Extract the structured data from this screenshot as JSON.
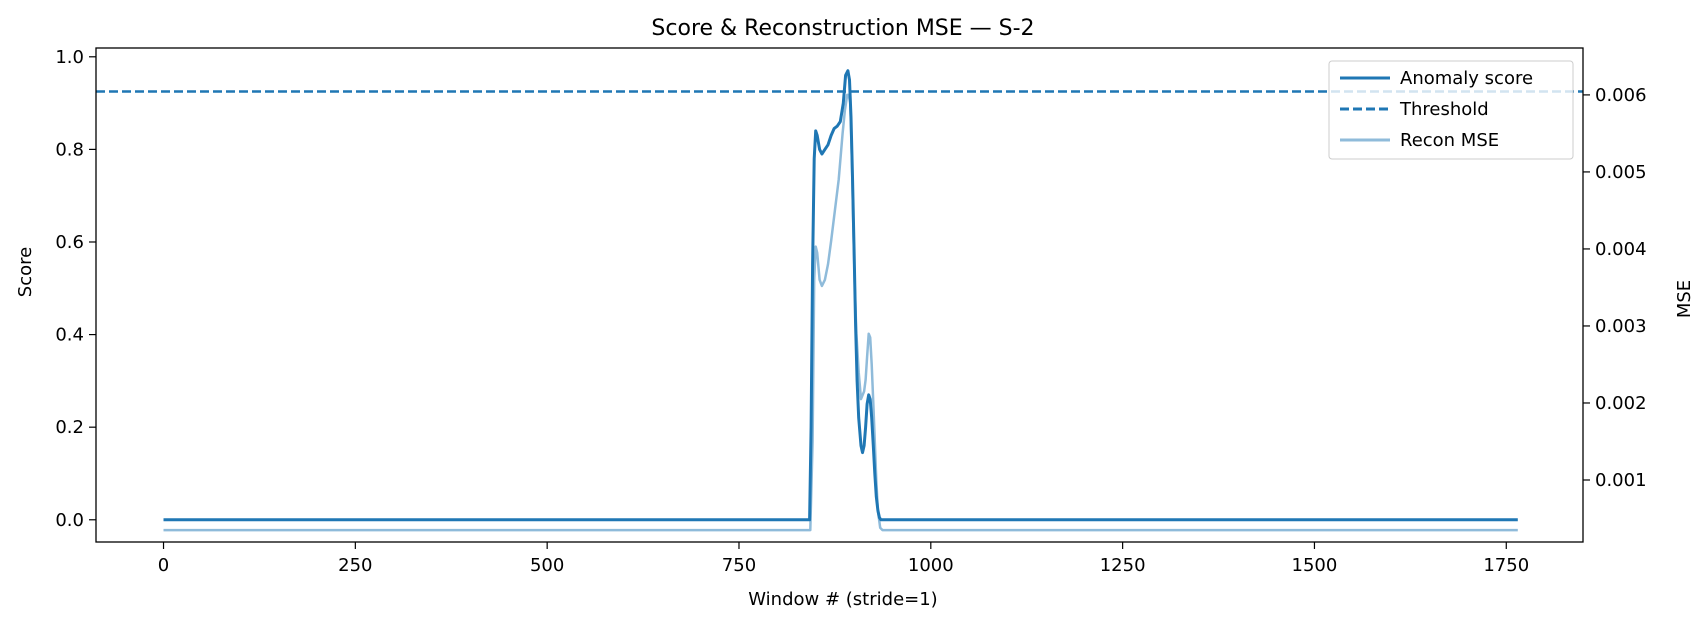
{
  "chart_data": {
    "type": "line",
    "title": "Score & Reconstruction MSE — S-2",
    "xlabel": "Window # (stride=1)",
    "ylabel": "Score",
    "y2label": "MSE",
    "xlim": [
      -88,
      1850
    ],
    "ylim": [
      -0.048,
      1.019
    ],
    "y2lim": [
      0.000195,
      0.006609
    ],
    "xticks": [
      0,
      250,
      500,
      750,
      1000,
      1250,
      1500,
      1750
    ],
    "yticks": [
      0.0,
      0.2,
      0.4,
      0.6,
      0.8,
      1.0
    ],
    "ytick_labels": [
      "0.0",
      "0.2",
      "0.4",
      "0.6",
      "0.8",
      "1.0"
    ],
    "y2ticks": [
      0.001,
      0.002,
      0.003,
      0.004,
      0.005,
      0.006
    ],
    "y2tick_labels": [
      "0.001",
      "0.002",
      "0.003",
      "0.004",
      "0.005",
      "0.006"
    ],
    "grid": false,
    "legend_position": "top-right",
    "colors": {
      "score": "#1f77b4",
      "threshold": "#1f77b4",
      "mse": "#8fbbda"
    },
    "threshold": 0.925,
    "series": [
      {
        "name": "Recon MSE",
        "axis": "right",
        "style": "solid",
        "x": [
          0,
          100,
          200,
          300,
          400,
          500,
          600,
          700,
          800,
          843,
          846,
          848,
          850,
          852,
          855,
          858,
          862,
          866,
          870,
          875,
          880,
          885,
          888,
          891,
          893,
          895,
          897,
          899,
          901,
          903,
          906,
          909,
          911,
          913,
          915,
          917,
          919,
          921,
          923,
          925,
          927,
          929,
          931,
          934,
          937,
          940,
          1000,
          1100,
          1200,
          1300,
          1400,
          1500,
          1600,
          1700,
          1765
        ],
        "y": [
          0.00035,
          0.00035,
          0.00035,
          0.00035,
          0.00035,
          0.00035,
          0.00035,
          0.00035,
          0.00035,
          0.00035,
          0.0015,
          0.0036,
          0.00403,
          0.00395,
          0.0036,
          0.00352,
          0.0036,
          0.0038,
          0.0041,
          0.0045,
          0.0049,
          0.0055,
          0.0058,
          0.006,
          0.006,
          0.0059,
          0.0052,
          0.0043,
          0.0035,
          0.0029,
          0.0024,
          0.00205,
          0.0021,
          0.00215,
          0.0023,
          0.0026,
          0.0029,
          0.00285,
          0.0025,
          0.002,
          0.0015,
          0.001,
          0.0006,
          0.00038,
          0.00035,
          0.00035,
          0.00035,
          0.00035,
          0.00035,
          0.00035,
          0.00035,
          0.00035,
          0.00035,
          0.00035,
          0.00035
        ]
      },
      {
        "name": "Anomaly score",
        "axis": "left",
        "style": "solid",
        "x": [
          0,
          100,
          200,
          300,
          400,
          500,
          600,
          700,
          800,
          842,
          844,
          846,
          848,
          850,
          852,
          855,
          858,
          862,
          866,
          870,
          874,
          878,
          882,
          886,
          889,
          892,
          894,
          896,
          898,
          900,
          902,
          904,
          906,
          909,
          911,
          913,
          915,
          917,
          919,
          921,
          923,
          925,
          927,
          929,
          931,
          933,
          935,
          937,
          940,
          1000,
          1100,
          1200,
          1300,
          1400,
          1500,
          1600,
          1700,
          1765
        ],
        "y": [
          0.0,
          0.0,
          0.0,
          0.0,
          0.0,
          0.0,
          0.0,
          0.0,
          0.0,
          0.0,
          0.2,
          0.55,
          0.78,
          0.84,
          0.83,
          0.8,
          0.79,
          0.8,
          0.81,
          0.83,
          0.845,
          0.85,
          0.86,
          0.9,
          0.96,
          0.97,
          0.95,
          0.87,
          0.74,
          0.58,
          0.42,
          0.3,
          0.22,
          0.16,
          0.145,
          0.16,
          0.2,
          0.25,
          0.27,
          0.26,
          0.22,
          0.16,
          0.1,
          0.05,
          0.02,
          0.005,
          0.0,
          0.0,
          0.0,
          0.0,
          0.0,
          0.0,
          0.0,
          0.0,
          0.0,
          0.0,
          0.0,
          0.0
        ]
      }
    ],
    "legend": [
      {
        "label": "Anomaly score",
        "style": "solid",
        "color": "#1f77b4"
      },
      {
        "label": "Threshold",
        "style": "dashed",
        "color": "#1f77b4"
      },
      {
        "label": "Recon MSE",
        "style": "solid",
        "color": "#8fbbda"
      }
    ]
  }
}
